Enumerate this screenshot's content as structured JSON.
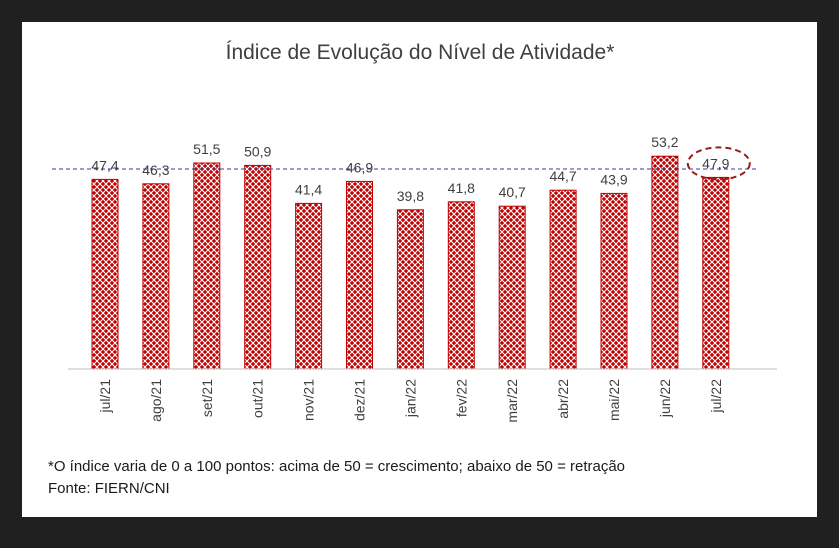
{
  "colors": {
    "bar_fill": "#c00000",
    "bar_pattern": "#ffffff",
    "reference_line": "#2d3fa8",
    "highlight_ring": "#9b1c1c",
    "text": "#404040",
    "frame": "#202020",
    "panel": "#ffffff"
  },
  "chart_data": {
    "type": "bar",
    "title": "Índice de Evolução do Nível de Atividade*",
    "categories": [
      "jul/21",
      "ago/21",
      "set/21",
      "out/21",
      "nov/21",
      "dez/21",
      "jan/22",
      "fev/22",
      "mar/22",
      "abr/22",
      "mai/22",
      "jun/22",
      "jul/22"
    ],
    "values": [
      47.4,
      46.3,
      51.5,
      50.9,
      41.4,
      46.9,
      39.8,
      41.8,
      40.7,
      44.7,
      43.9,
      53.2,
      47.9
    ],
    "value_labels": [
      "47,4",
      "46,3",
      "51,5",
      "50,9",
      "41,4",
      "46,9",
      "39,8",
      "41,8",
      "40,7",
      "44,7",
      "43,9",
      "53,2",
      "47,9"
    ],
    "ylim": [
      0,
      60
    ],
    "reference_line": 50,
    "highlighted_category": "jul/22",
    "grid": false,
    "legend": "none"
  },
  "footer": {
    "note": "*O índice varia de 0 a 100 pontos: acima de 50 = crescimento; abaixo de 50 = retração",
    "source": "Fonte: FIERN/CNI"
  }
}
